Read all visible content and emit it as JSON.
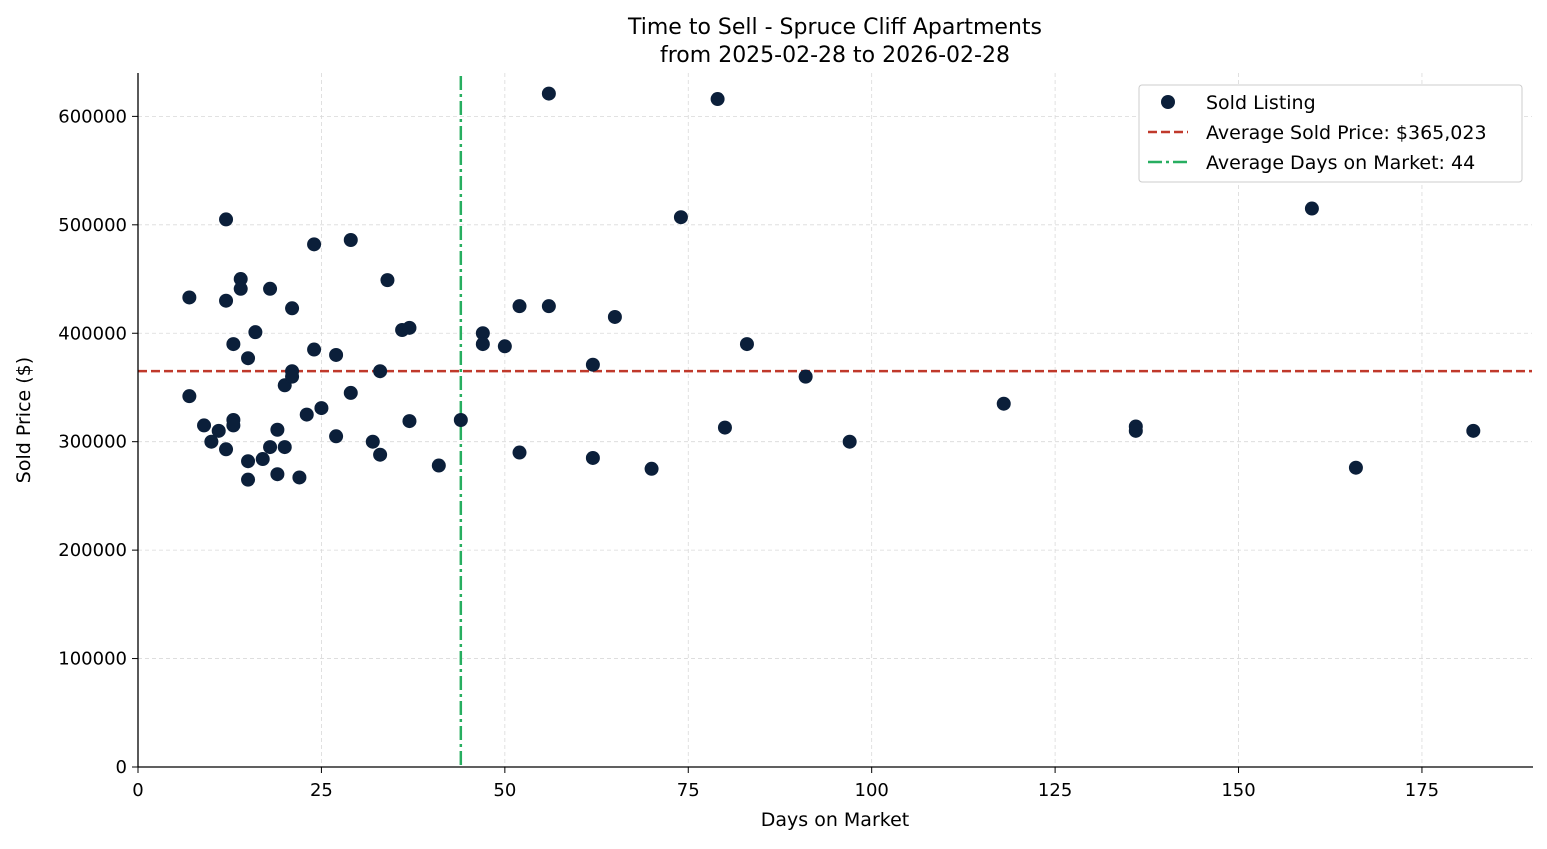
{
  "chart_data": {
    "type": "scatter",
    "title": "Time to Sell - Spruce Cliff Apartments",
    "subtitle": "from 2025-02-28 to 2026-02-28",
    "xlabel": "Days on Market",
    "ylabel": "Sold Price ($)",
    "xlim": [
      0,
      190
    ],
    "ylim": [
      0,
      640000
    ],
    "xticks": [
      0,
      25,
      50,
      75,
      100,
      125,
      150,
      175
    ],
    "yticks": [
      0,
      100000,
      200000,
      300000,
      400000,
      500000,
      600000
    ],
    "grid": true,
    "legend_position": "top-right",
    "colors": {
      "points": "#0b1f3a",
      "avg_price": "#c0392b",
      "avg_days": "#27ae60",
      "grid": "#d9d9d9"
    },
    "series": [
      {
        "name": "Sold Listing",
        "points": [
          [
            7,
            433000
          ],
          [
            7,
            342000
          ],
          [
            9,
            315000
          ],
          [
            10,
            300000
          ],
          [
            11,
            310000
          ],
          [
            12,
            505000
          ],
          [
            12,
            430000
          ],
          [
            12,
            293000
          ],
          [
            13,
            390000
          ],
          [
            13,
            320000
          ],
          [
            13,
            315000
          ],
          [
            14,
            450000
          ],
          [
            14,
            441000
          ],
          [
            15,
            377000
          ],
          [
            15,
            282000
          ],
          [
            15,
            265000
          ],
          [
            16,
            401000
          ],
          [
            17,
            284000
          ],
          [
            18,
            441000
          ],
          [
            18,
            295000
          ],
          [
            19,
            311000
          ],
          [
            19,
            270000
          ],
          [
            20,
            295000
          ],
          [
            20,
            352000
          ],
          [
            21,
            423000
          ],
          [
            21,
            365000
          ],
          [
            21,
            360000
          ],
          [
            22,
            267000
          ],
          [
            23,
            325000
          ],
          [
            24,
            482000
          ],
          [
            24,
            385000
          ],
          [
            25,
            331000
          ],
          [
            27,
            380000
          ],
          [
            27,
            305000
          ],
          [
            29,
            486000
          ],
          [
            29,
            345000
          ],
          [
            32,
            300000
          ],
          [
            33,
            365000
          ],
          [
            33,
            288000
          ],
          [
            34,
            449000
          ],
          [
            36,
            403000
          ],
          [
            37,
            405000
          ],
          [
            37,
            319000
          ],
          [
            41,
            278000
          ],
          [
            44,
            320000
          ],
          [
            47,
            400000
          ],
          [
            47,
            390000
          ],
          [
            50,
            388000
          ],
          [
            52,
            425000
          ],
          [
            52,
            290000
          ],
          [
            56,
            621000
          ],
          [
            56,
            425000
          ],
          [
            62,
            371000
          ],
          [
            62,
            285000
          ],
          [
            65,
            415000
          ],
          [
            70,
            275000
          ],
          [
            74,
            507000
          ],
          [
            79,
            616000
          ],
          [
            80,
            313000
          ],
          [
            83,
            390000
          ],
          [
            91,
            360000
          ],
          [
            97,
            300000
          ],
          [
            118,
            335000
          ],
          [
            136,
            314000
          ],
          [
            136,
            310000
          ],
          [
            160,
            515000
          ],
          [
            166,
            276000
          ],
          [
            182,
            310000
          ]
        ]
      }
    ],
    "reference_lines": [
      {
        "name": "Average Sold Price: $365,023",
        "orientation": "horizontal",
        "value": 365023,
        "style": "dashed"
      },
      {
        "name": "Average Days on Market: 44",
        "orientation": "vertical",
        "value": 44,
        "style": "dashdot"
      }
    ]
  }
}
